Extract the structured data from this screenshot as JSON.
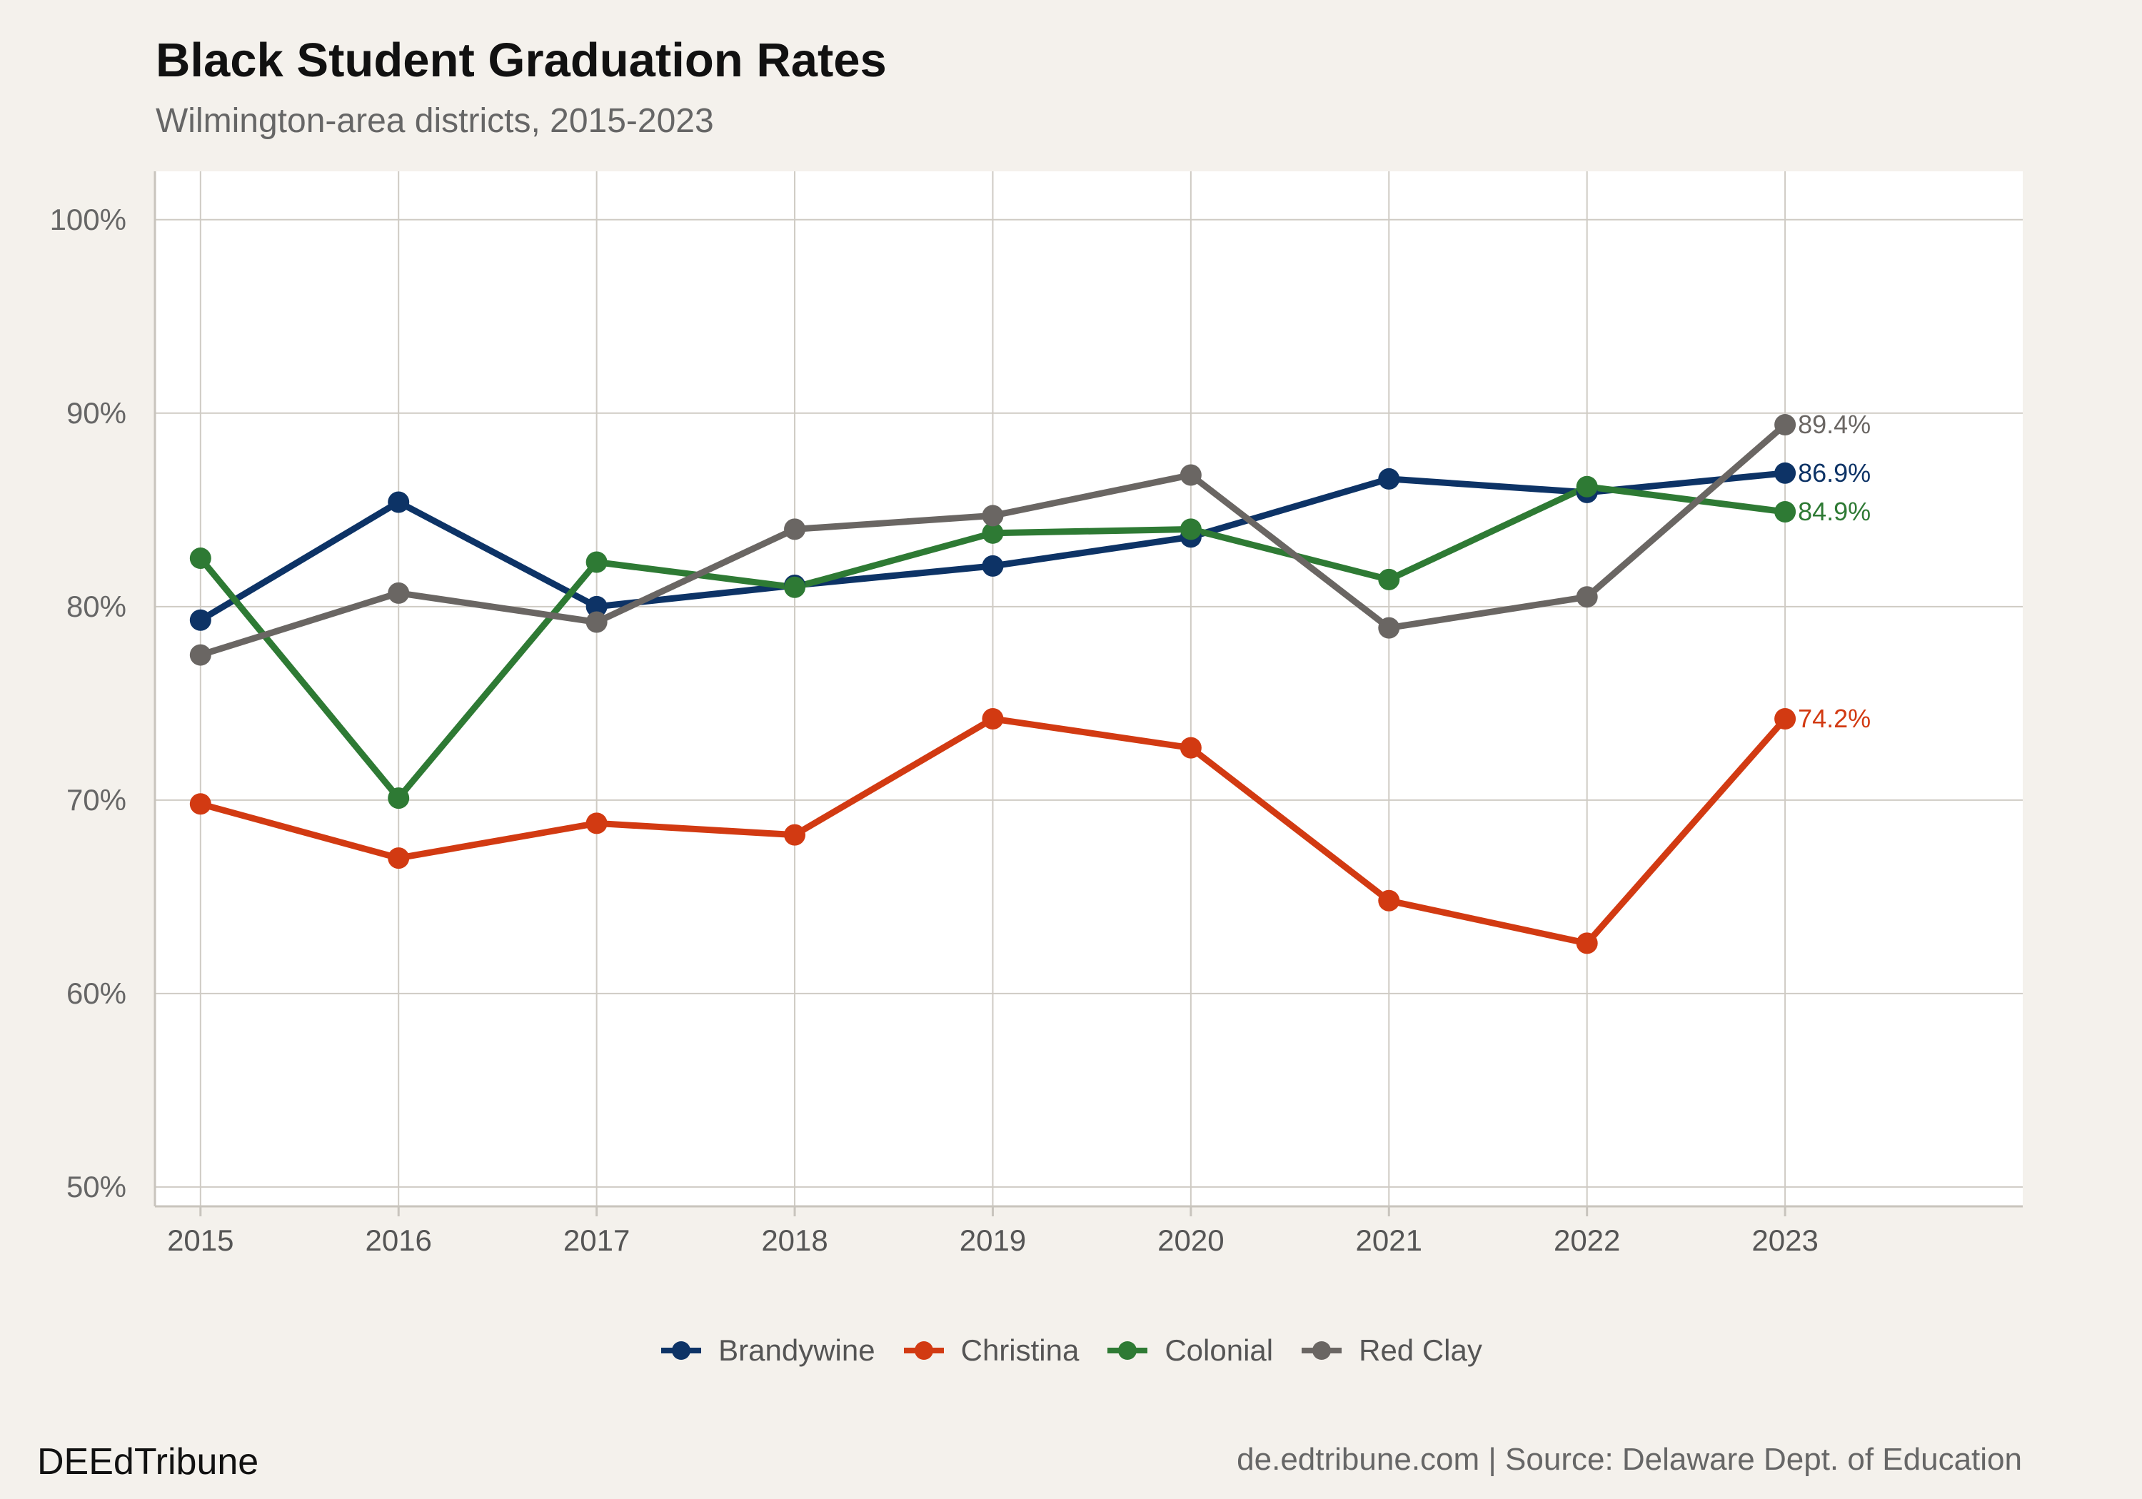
{
  "header": {
    "title": "Black Student Graduation Rates",
    "subtitle": "Wilmington-area districts, 2015-2023"
  },
  "footer": {
    "brand": "DEEdTribune",
    "source": "de.edtribune.com | Source: Delaware Dept. of Education"
  },
  "chart_data": {
    "type": "line",
    "title": "Black Student Graduation Rates",
    "subtitle": "Wilmington-area districts, 2015-2023",
    "xlabel": "",
    "ylabel": "",
    "x": [
      2015,
      2016,
      2017,
      2018,
      2019,
      2020,
      2021,
      2022,
      2023
    ],
    "x_tick_labels": [
      "2015",
      "2016",
      "2017",
      "2018",
      "2019",
      "2020",
      "2021",
      "2022",
      "2023"
    ],
    "xlim": [
      2014.77,
      2024.2
    ],
    "y_ticks": [
      50,
      60,
      70,
      80,
      90,
      100
    ],
    "y_tick_labels": [
      "50%",
      "60%",
      "70%",
      "80%",
      "90%",
      "100%"
    ],
    "ylim": [
      49,
      102.5
    ],
    "grid": true,
    "legend_position": "bottom",
    "series": [
      {
        "name": "Brandywine",
        "color": "#0d3366",
        "values": [
          79.3,
          85.4,
          80.0,
          81.1,
          82.1,
          83.6,
          86.6,
          85.9,
          86.9
        ],
        "end_label": "86.9%"
      },
      {
        "name": "Christina",
        "color": "#d23a12",
        "values": [
          69.8,
          67.0,
          68.8,
          68.2,
          74.2,
          72.7,
          64.8,
          62.6,
          74.2
        ],
        "end_label": "74.2%"
      },
      {
        "name": "Colonial",
        "color": "#2e7a34",
        "values": [
          82.5,
          70.1,
          82.3,
          81.0,
          83.8,
          84.0,
          81.4,
          86.2,
          84.9
        ],
        "end_label": "84.9%"
      },
      {
        "name": "Red Clay",
        "color": "#6a6663",
        "values": [
          77.5,
          80.7,
          79.2,
          84.0,
          84.7,
          86.8,
          78.9,
          80.5,
          89.4
        ],
        "end_label": "89.4%"
      }
    ]
  }
}
